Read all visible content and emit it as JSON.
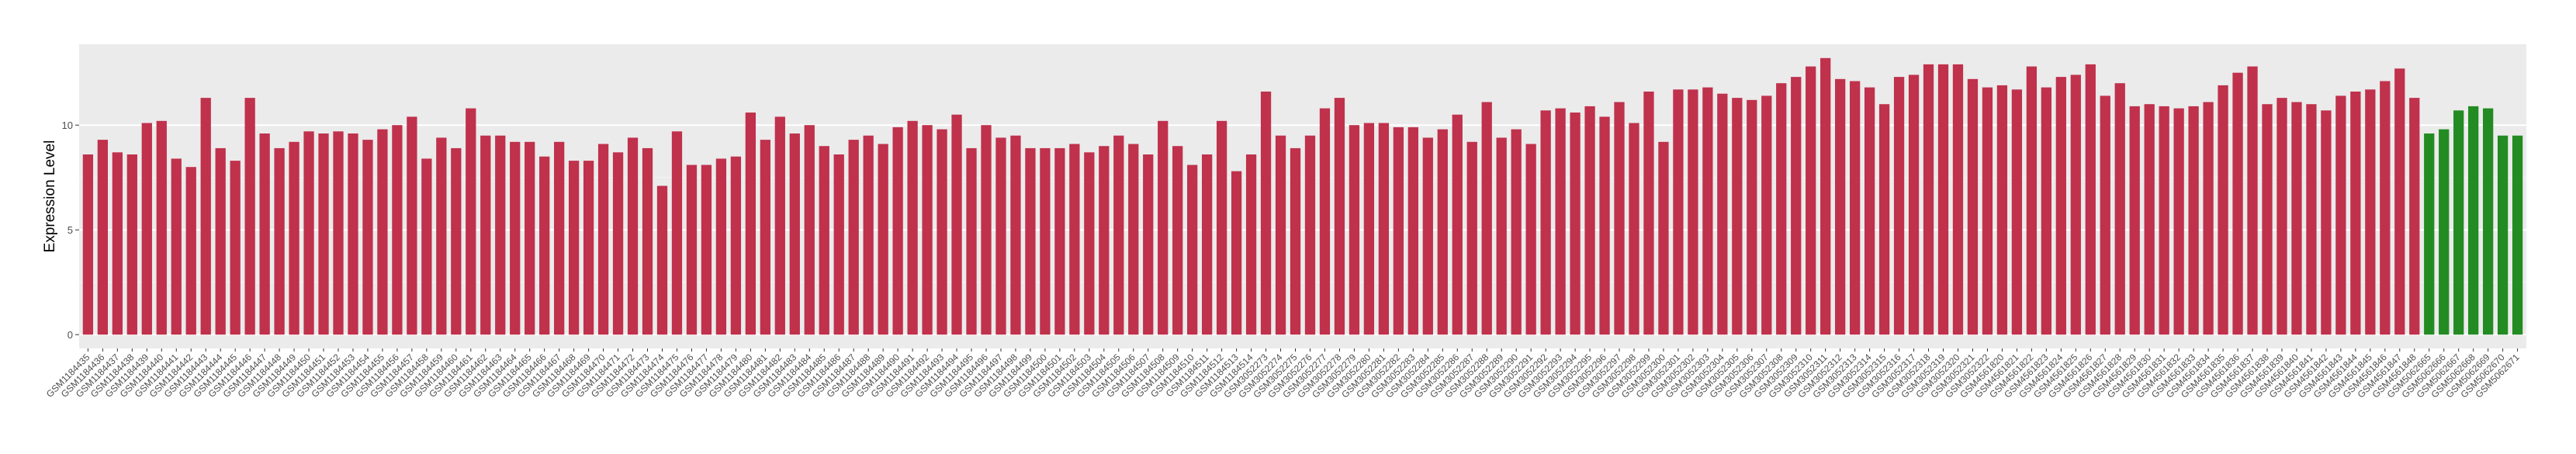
{
  "chart_data": {
    "type": "bar",
    "ylabel": "Expression Level",
    "categories": [
      "GSM1184435",
      "GSM1184436",
      "GSM1184437",
      "GSM1184438",
      "GSM1184439",
      "GSM1184440",
      "GSM1184441",
      "GSM1184442",
      "GSM1184443",
      "GSM1184444",
      "GSM1184445",
      "GSM1184446",
      "GSM1184447",
      "GSM1184448",
      "GSM1184449",
      "GSM1184450",
      "GSM1184451",
      "GSM1184452",
      "GSM1184453",
      "GSM1184454",
      "GSM1184455",
      "GSM1184456",
      "GSM1184457",
      "GSM1184458",
      "GSM1184459",
      "GSM1184460",
      "GSM1184461",
      "GSM1184462",
      "GSM1184463",
      "GSM1184464",
      "GSM1184465",
      "GSM1184466",
      "GSM1184467",
      "GSM1184468",
      "GSM1184469",
      "GSM1184470",
      "GSM1184471",
      "GSM1184472",
      "GSM1184473",
      "GSM1184474",
      "GSM1184475",
      "GSM1184476",
      "GSM1184477",
      "GSM1184478",
      "GSM1184479",
      "GSM1184480",
      "GSM1184481",
      "GSM1184482",
      "GSM1184483",
      "GSM1184484",
      "GSM1184485",
      "GSM1184486",
      "GSM1184487",
      "GSM1184488",
      "GSM1184489",
      "GSM1184490",
      "GSM1184491",
      "GSM1184492",
      "GSM1184493",
      "GSM1184494",
      "GSM1184495",
      "GSM1184496",
      "GSM1184497",
      "GSM1184498",
      "GSM1184499",
      "GSM1184500",
      "GSM1184501",
      "GSM1184502",
      "GSM1184503",
      "GSM1184504",
      "GSM1184505",
      "GSM1184506",
      "GSM1184507",
      "GSM1184508",
      "GSM1184509",
      "GSM1184510",
      "GSM1184511",
      "GSM1184512",
      "GSM1184513",
      "GSM1184514",
      "GSM3052273",
      "GSM3052274",
      "GSM3052275",
      "GSM3052276",
      "GSM3052277",
      "GSM3052278",
      "GSM3052279",
      "GSM3052280",
      "GSM3052281",
      "GSM3052282",
      "GSM3052283",
      "GSM3052284",
      "GSM3052285",
      "GSM3052286",
      "GSM3052287",
      "GSM3052288",
      "GSM3052289",
      "GSM3052290",
      "GSM3052291",
      "GSM3052292",
      "GSM3052293",
      "GSM3052294",
      "GSM3052295",
      "GSM3052296",
      "GSM3052297",
      "GSM3052298",
      "GSM3052299",
      "GSM3052300",
      "GSM3052301",
      "GSM3052302",
      "GSM3052303",
      "GSM3052304",
      "GSM3052305",
      "GSM3052306",
      "GSM3052307",
      "GSM3052308",
      "GSM3052309",
      "GSM3052310",
      "GSM3052311",
      "GSM3052312",
      "GSM3052313",
      "GSM3052314",
      "GSM3052315",
      "GSM3052316",
      "GSM3052317",
      "GSM3052318",
      "GSM3052319",
      "GSM3052320",
      "GSM3052321",
      "GSM3052322",
      "GSM4561820",
      "GSM4561821",
      "GSM4561822",
      "GSM4561823",
      "GSM4561824",
      "GSM4561825",
      "GSM4561826",
      "GSM4561827",
      "GSM4561828",
      "GSM4561829",
      "GSM4561830",
      "GSM4561831",
      "GSM4561832",
      "GSM4561833",
      "GSM4561834",
      "GSM4561835",
      "GSM4561836",
      "GSM4561837",
      "GSM4561838",
      "GSM4561839",
      "GSM4561840",
      "GSM4561841",
      "GSM4561842",
      "GSM4561843",
      "GSM4561844",
      "GSM4561845",
      "GSM4561846",
      "GSM4561847",
      "GSM4561848",
      "GSM5062665",
      "GSM5062666",
      "GSM5062667",
      "GSM5062668",
      "GSM5062669",
      "GSM5062670",
      "GSM5062671"
    ],
    "values": [
      8.6,
      9.3,
      8.7,
      8.6,
      10.1,
      10.2,
      8.4,
      8.0,
      11.3,
      8.9,
      8.3,
      11.3,
      9.6,
      8.9,
      9.2,
      9.7,
      9.6,
      9.7,
      9.6,
      9.3,
      9.8,
      10.0,
      10.4,
      8.4,
      9.4,
      8.9,
      10.8,
      9.5,
      9.5,
      9.2,
      9.2,
      8.5,
      9.2,
      8.3,
      8.3,
      9.1,
      8.7,
      9.4,
      8.9,
      7.1,
      9.7,
      8.1,
      8.1,
      8.4,
      8.5,
      10.6,
      9.3,
      10.4,
      9.6,
      10.0,
      9.0,
      8.6,
      9.3,
      9.5,
      9.1,
      9.9,
      10.2,
      10.0,
      9.8,
      10.5,
      8.9,
      10.0,
      9.4,
      9.5,
      8.9,
      8.9,
      8.9,
      9.1,
      8.7,
      9.0,
      9.5,
      9.1,
      8.6,
      10.2,
      9.0,
      8.1,
      8.6,
      10.2,
      7.8,
      8.6,
      11.6,
      9.5,
      8.9,
      9.5,
      10.8,
      11.3,
      10.0,
      10.1,
      10.1,
      9.9,
      9.9,
      9.4,
      9.8,
      10.5,
      9.2,
      11.1,
      9.4,
      9.8,
      9.1,
      10.7,
      10.8,
      10.6,
      10.9,
      10.4,
      11.1,
      10.1,
      11.6,
      9.2,
      11.7,
      11.7,
      11.8,
      11.5,
      11.3,
      11.2,
      11.4,
      12.0,
      12.3,
      12.8,
      13.2,
      12.2,
      12.1,
      11.8,
      11.0,
      12.3,
      12.4,
      12.9,
      12.9,
      12.9,
      12.2,
      11.8,
      11.9,
      11.7,
      12.8,
      11.8,
      12.3,
      12.4,
      12.9,
      11.4,
      12.0,
      10.9,
      11.0,
      10.9,
      10.8,
      10.9,
      11.1,
      11.9,
      12.5,
      12.8,
      11.0,
      11.3,
      11.1,
      11.0,
      10.7,
      11.4,
      11.6,
      11.7,
      12.1,
      12.7,
      11.3,
      9.6,
      9.8,
      10.7,
      10.9,
      10.8,
      9.5,
      9.5
    ],
    "colors": [
      "#c0314c",
      "#c0314c",
      "#c0314c",
      "#c0314c",
      "#c0314c",
      "#c0314c",
      "#c0314c",
      "#c0314c",
      "#c0314c",
      "#c0314c",
      "#c0314c",
      "#c0314c",
      "#c0314c",
      "#c0314c",
      "#c0314c",
      "#c0314c",
      "#c0314c",
      "#c0314c",
      "#c0314c",
      "#c0314c",
      "#c0314c",
      "#c0314c",
      "#c0314c",
      "#c0314c",
      "#c0314c",
      "#c0314c",
      "#c0314c",
      "#c0314c",
      "#c0314c",
      "#c0314c",
      "#c0314c",
      "#c0314c",
      "#c0314c",
      "#c0314c",
      "#c0314c",
      "#c0314c",
      "#c0314c",
      "#c0314c",
      "#c0314c",
      "#c0314c",
      "#c0314c",
      "#c0314c",
      "#c0314c",
      "#c0314c",
      "#c0314c",
      "#c0314c",
      "#c0314c",
      "#c0314c",
      "#c0314c",
      "#c0314c",
      "#c0314c",
      "#c0314c",
      "#c0314c",
      "#c0314c",
      "#c0314c",
      "#c0314c",
      "#c0314c",
      "#c0314c",
      "#c0314c",
      "#c0314c",
      "#c0314c",
      "#c0314c",
      "#c0314c",
      "#c0314c",
      "#c0314c",
      "#c0314c",
      "#c0314c",
      "#c0314c",
      "#c0314c",
      "#c0314c",
      "#c0314c",
      "#c0314c",
      "#c0314c",
      "#c0314c",
      "#c0314c",
      "#c0314c",
      "#c0314c",
      "#c0314c",
      "#c0314c",
      "#c0314c",
      "#c0314c",
      "#c0314c",
      "#c0314c",
      "#c0314c",
      "#c0314c",
      "#c0314c",
      "#c0314c",
      "#c0314c",
      "#c0314c",
      "#c0314c",
      "#c0314c",
      "#c0314c",
      "#c0314c",
      "#c0314c",
      "#c0314c",
      "#c0314c",
      "#c0314c",
      "#c0314c",
      "#c0314c",
      "#c0314c",
      "#c0314c",
      "#c0314c",
      "#c0314c",
      "#c0314c",
      "#c0314c",
      "#c0314c",
      "#c0314c",
      "#c0314c",
      "#c0314c",
      "#c0314c",
      "#c0314c",
      "#c0314c",
      "#c0314c",
      "#c0314c",
      "#c0314c",
      "#c0314c",
      "#c0314c",
      "#c0314c",
      "#c0314c",
      "#c0314c",
      "#c0314c",
      "#c0314c",
      "#c0314c",
      "#c0314c",
      "#c0314c",
      "#c0314c",
      "#c0314c",
      "#c0314c",
      "#c0314c",
      "#c0314c",
      "#c0314c",
      "#c0314c",
      "#c0314c",
      "#c0314c",
      "#c0314c",
      "#c0314c",
      "#c0314c",
      "#c0314c",
      "#c0314c",
      "#c0314c",
      "#c0314c",
      "#c0314c",
      "#c0314c",
      "#c0314c",
      "#c0314c",
      "#c0314c",
      "#c0314c",
      "#c0314c",
      "#c0314c",
      "#c0314c",
      "#c0314c",
      "#c0314c",
      "#c0314c",
      "#c0314c",
      "#c0314c",
      "#c0314c",
      "#c0314c",
      "#c0314c",
      "#c0314c",
      "#228b22",
      "#228b22",
      "#228b22",
      "#228b22",
      "#228b22",
      "#228b22",
      "#228b22"
    ],
    "ylim": [
      -0.66,
      13.86
    ],
    "yticks": [
      0,
      5,
      10
    ],
    "grid": true
  }
}
